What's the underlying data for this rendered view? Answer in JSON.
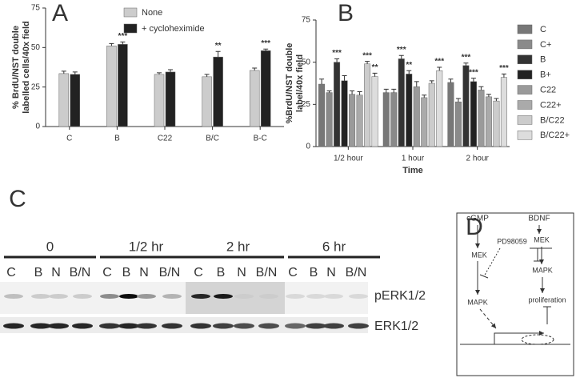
{
  "chart_data": [
    {
      "type": "bar",
      "label": "A",
      "ylabel": [
        "% BrdU/NST double",
        "labelled cells/40x field"
      ],
      "categories": [
        "C",
        "B",
        "C22",
        "B/C",
        "B-C"
      ],
      "series": [
        {
          "name": "None",
          "color": "#cccccc",
          "values": [
            33.5,
            51,
            33,
            31.5,
            35.5
          ],
          "errors": [
            1.5,
            1.5,
            1,
            1.5,
            1.5
          ],
          "significance": [
            null,
            null,
            null,
            null,
            null
          ]
        },
        {
          "name": "+ cycloheximide",
          "color": "#222222",
          "values": [
            33,
            52,
            34.5,
            44,
            48
          ],
          "errors": [
            1.5,
            1.5,
            1.5,
            3.5,
            1
          ],
          "significance": [
            null,
            "***",
            null,
            "**",
            "***"
          ]
        }
      ],
      "ylim": [
        0,
        75
      ],
      "yticks": [
        0,
        25,
        50,
        75
      ],
      "legend": "top"
    },
    {
      "type": "bar",
      "label": "B",
      "ylabel": [
        "%BrdU/NST double",
        "label/40x field"
      ],
      "xlabel": "Time",
      "categories": [
        "1/2 hour",
        "1 hour",
        "2 hour"
      ],
      "series": [
        {
          "name": "C",
          "color": "#777777",
          "values": [
            37,
            32,
            38
          ],
          "errors": [
            3,
            2,
            2
          ],
          "significance": [
            null,
            null,
            null
          ]
        },
        {
          "name": "C+",
          "color": "#8a8a8a",
          "values": [
            32,
            32,
            26.5
          ],
          "errors": [
            1,
            2,
            2
          ],
          "significance": [
            null,
            null,
            null
          ]
        },
        {
          "name": "B",
          "color": "#333333",
          "values": [
            50,
            52,
            48
          ],
          "errors": [
            2,
            2,
            1.5
          ],
          "significance": [
            "***",
            "***",
            "***"
          ]
        },
        {
          "name": "B+",
          "color": "#222222",
          "values": [
            39,
            43,
            38.5
          ],
          "errors": [
            3,
            2,
            2
          ],
          "significance": [
            null,
            "**",
            "***"
          ]
        },
        {
          "name": "C22",
          "color": "#9a9a9a",
          "values": [
            31,
            35.5,
            33.5
          ],
          "errors": [
            2,
            3,
            2
          ],
          "significance": [
            null,
            null,
            null
          ]
        },
        {
          "name": "C22+",
          "color": "#aaaaaa",
          "values": [
            30.5,
            29,
            29.5
          ],
          "errors": [
            2,
            1.5,
            1.5
          ],
          "significance": [
            null,
            null,
            null
          ]
        },
        {
          "name": "B/C22",
          "color": "#cccccc",
          "values": [
            49,
            37.5,
            27
          ],
          "errors": [
            1.5,
            1.5,
            1.5
          ],
          "significance": [
            "***",
            null,
            null
          ]
        },
        {
          "name": "B/C22+",
          "color": "#dddddd",
          "values": [
            41.5,
            45,
            41
          ],
          "errors": [
            2,
            2,
            2
          ],
          "significance": [
            "**",
            "***",
            "***"
          ]
        }
      ],
      "ylim": [
        0,
        75
      ],
      "yticks": [
        0,
        25,
        50,
        75
      ],
      "legend": "right"
    }
  ],
  "blot": {
    "label": "C",
    "rows": [
      "pERK1/2",
      "ERK1/2"
    ],
    "groups": [
      {
        "label": "0",
        "lanes": [
          "C",
          "B",
          "N",
          "B/N"
        ]
      },
      {
        "label": "1/2 hr",
        "lanes": [
          "C",
          "B",
          "N",
          "B/N"
        ]
      },
      {
        "label": "2 hr",
        "lanes": [
          "C",
          "B",
          "N",
          "B/N"
        ]
      },
      {
        "label": "6 hr",
        "lanes": [
          "C",
          "B",
          "N",
          "B/N"
        ]
      }
    ]
  },
  "diagram": {
    "label": "D",
    "nodes": [
      "cGMP",
      "BDNF",
      "PD98059",
      "MEK",
      "MEK",
      "MAPK",
      "MAPK",
      "proliferation"
    ]
  }
}
